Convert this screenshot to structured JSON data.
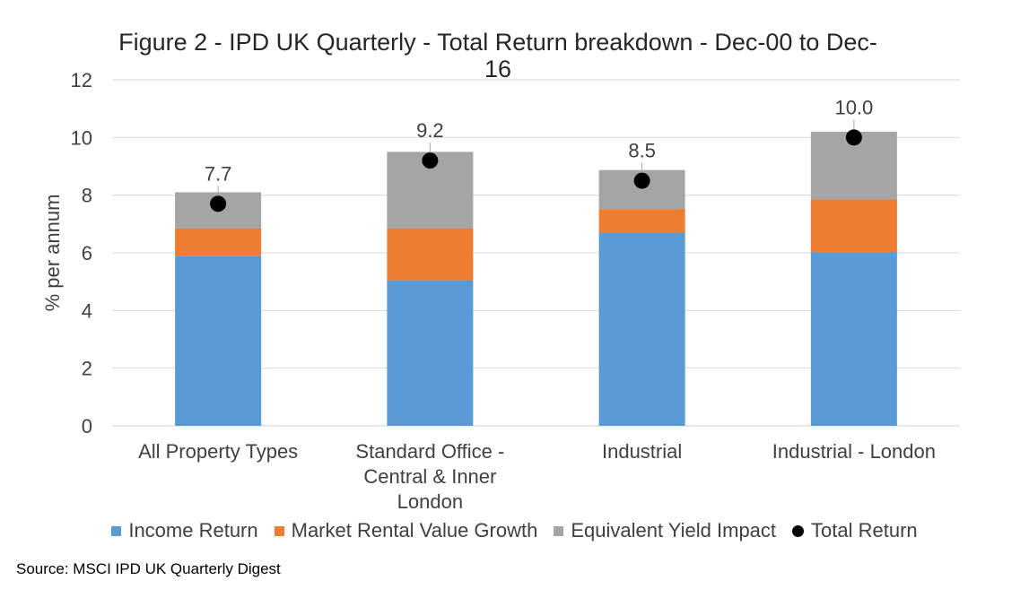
{
  "chart_data": {
    "type": "bar",
    "stacked": true,
    "title": "Figure 2 - IPD UK Quarterly - Total Return breakdown - Dec-00 to Dec-16",
    "ylabel": "% per annum",
    "xlabel": "",
    "ylim": [
      0,
      12
    ],
    "yticks": [
      0,
      2,
      4,
      6,
      8,
      10,
      12
    ],
    "grid": true,
    "legend_position": "bottom",
    "categories": [
      [
        "All Property Types"
      ],
      [
        "Standard Office -",
        "Central & Inner",
        "London"
      ],
      [
        "Industrial"
      ],
      [
        "Industrial - London"
      ]
    ],
    "series": [
      {
        "name": "Income Return",
        "color": "#5B9BD5",
        "values": [
          5.9,
          5.05,
          6.7,
          6.0
        ]
      },
      {
        "name": "Market Rental Value Growth",
        "color": "#ED7D31",
        "values": [
          0.95,
          1.8,
          0.82,
          1.85
        ]
      },
      {
        "name": "Equivalent Yield Impact",
        "color": "#A5A5A5",
        "values": [
          1.25,
          2.65,
          1.35,
          2.35
        ]
      }
    ],
    "total_return": {
      "name": "Total Return",
      "color": "#000000",
      "values": [
        7.7,
        9.2,
        8.5,
        10.0
      ],
      "labels": [
        "7.7",
        "9.2",
        "8.5",
        "10.0"
      ]
    }
  },
  "source": "Source: MSCI IPD UK Quarterly Digest"
}
